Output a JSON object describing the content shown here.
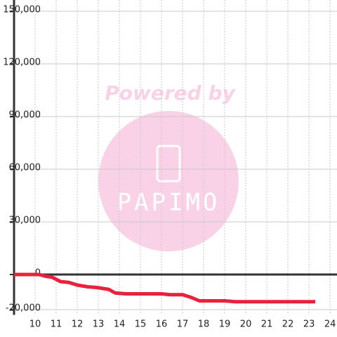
{
  "chart_data": {
    "type": "line",
    "watermark": {
      "title": "Powered by",
      "brand": "PAPIMO"
    },
    "x": [
      9,
      10.2,
      10.5,
      10.8,
      11.2,
      11.6,
      12,
      12.5,
      13,
      13.5,
      13.8,
      14.3,
      16,
      16.4,
      17,
      17.4,
      17.8,
      19,
      19.5,
      22,
      23.3
    ],
    "series": [
      {
        "color": "#e8223c",
        "values": [
          0,
          0,
          -1000,
          -1500,
          -4000,
          -4500,
          -6000,
          -7000,
          -7500,
          -8500,
          -10500,
          -11000,
          -11000,
          -11500,
          -11500,
          -13000,
          -15000,
          -15000,
          -15500,
          -15500,
          -15500
        ]
      }
    ],
    "xlim": [
      9,
      24.33
    ],
    "xticks": [
      10,
      11,
      12,
      13,
      14,
      15,
      16,
      17,
      18,
      19,
      20,
      21,
      22,
      23,
      24
    ],
    "ylim": [
      -23000,
      150000
    ],
    "yticks": [
      {
        "value": 150000,
        "label": "150,000"
      },
      {
        "value": 120000,
        "label": "120,000"
      },
      {
        "value": 90000,
        "label": "90,000"
      },
      {
        "value": 60000,
        "label": "60,000"
      },
      {
        "value": 30000,
        "label": "30,000"
      },
      0,
      {
        "value": -20000,
        "label": "-20,000"
      }
    ],
    "grid": true
  }
}
